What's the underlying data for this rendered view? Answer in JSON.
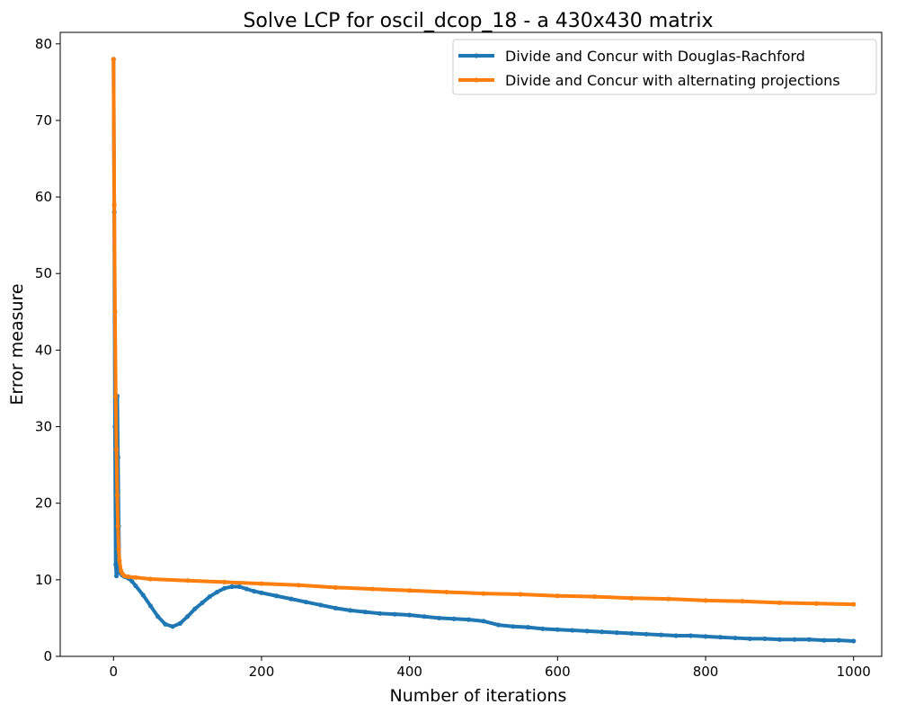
{
  "chart_data": {
    "type": "line",
    "title": "Solve LCP for oscil_dcop_18 - a 430x430 matrix",
    "xlabel": "Number of iterations",
    "ylabel": "Error measure",
    "xlim": [
      -72,
      1038
    ],
    "ylim": [
      0,
      81.5
    ],
    "xticks": [
      0,
      200,
      400,
      600,
      800,
      1000
    ],
    "yticks": [
      0,
      10,
      20,
      30,
      40,
      50,
      60,
      70,
      80
    ],
    "grid": false,
    "legend_position": "top-right",
    "series": [
      {
        "name": "Divide and Concur with Douglas-Rachford",
        "color": "#1f77b4",
        "marker": "circle",
        "x": [
          0,
          1,
          2,
          3,
          4,
          5,
          6,
          7,
          8,
          10,
          12,
          15,
          20,
          25,
          30,
          40,
          50,
          60,
          70,
          80,
          90,
          100,
          110,
          120,
          130,
          140,
          150,
          160,
          170,
          180,
          190,
          200,
          220,
          240,
          260,
          280,
          300,
          320,
          340,
          360,
          380,
          400,
          420,
          440,
          460,
          480,
          500,
          520,
          540,
          560,
          580,
          600,
          620,
          640,
          660,
          680,
          700,
          720,
          740,
          760,
          780,
          800,
          820,
          840,
          860,
          880,
          900,
          920,
          940,
          960,
          980,
          1000
        ],
        "y": [
          78,
          58,
          30,
          12,
          10.5,
          34,
          26,
          17,
          11,
          10.8,
          10.6,
          10.4,
          10.2,
          9.8,
          9.2,
          8.0,
          6.6,
          5.2,
          4.2,
          3.9,
          4.3,
          5.2,
          6.2,
          7.0,
          7.8,
          8.4,
          8.9,
          9.1,
          9.1,
          8.8,
          8.5,
          8.3,
          7.9,
          7.5,
          7.1,
          6.7,
          6.3,
          6.0,
          5.8,
          5.6,
          5.5,
          5.4,
          5.2,
          5.0,
          4.9,
          4.8,
          4.6,
          4.1,
          3.9,
          3.8,
          3.6,
          3.5,
          3.4,
          3.3,
          3.2,
          3.1,
          3.0,
          2.9,
          2.8,
          2.7,
          2.7,
          2.6,
          2.5,
          2.4,
          2.3,
          2.3,
          2.2,
          2.2,
          2.2,
          2.1,
          2.1,
          2.0
        ]
      },
      {
        "name": "Divide and Concur with alternating projections",
        "color": "#ff7f0e",
        "marker": "circle",
        "x": [
          0,
          1,
          2,
          3,
          4,
          5,
          6,
          7,
          8,
          10,
          12,
          15,
          20,
          30,
          50,
          100,
          150,
          200,
          250,
          300,
          350,
          400,
          450,
          500,
          550,
          600,
          650,
          700,
          750,
          800,
          850,
          900,
          950,
          1000
        ],
        "y": [
          78,
          59,
          45,
          34,
          27,
          21,
          17,
          14,
          12.5,
          11.2,
          10.8,
          10.5,
          10.4,
          10.3,
          10.1,
          9.9,
          9.7,
          9.5,
          9.3,
          9.0,
          8.8,
          8.6,
          8.4,
          8.2,
          8.1,
          7.9,
          7.8,
          7.6,
          7.5,
          7.3,
          7.2,
          7.0,
          6.9,
          6.8
        ]
      }
    ]
  }
}
